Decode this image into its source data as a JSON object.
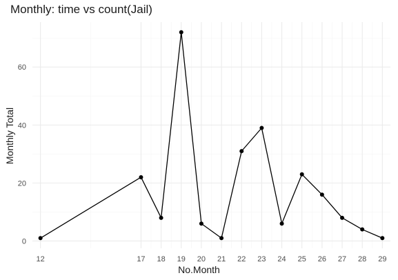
{
  "chart_data": {
    "type": "line",
    "title": "Monthly: time vs count(Jail)",
    "xlabel": "No.Month",
    "ylabel": "Monthly Total",
    "x": [
      12,
      17,
      18,
      19,
      20,
      21,
      22,
      23,
      24,
      25,
      26,
      27,
      28,
      29
    ],
    "series": [
      {
        "values": [
          1,
          22,
          8,
          72,
          6,
          1,
          31,
          39,
          6,
          23,
          16,
          8,
          4,
          1
        ]
      }
    ],
    "xlim": [
      11.6,
      29.4
    ],
    "ylim": [
      -2.5,
      75.5
    ],
    "y_ticks": [
      0,
      20,
      40,
      60
    ],
    "x_ticks": [
      12,
      17,
      18,
      19,
      20,
      21,
      22,
      23,
      24,
      25,
      26,
      27,
      28,
      29
    ],
    "x_minor_ticks": [
      14.5,
      17.5,
      18.5,
      19.5,
      20.5,
      21.5,
      22.5,
      23.5,
      24.5,
      25.5,
      26.5,
      27.5,
      28.5
    ],
    "y_minor_ticks": [
      10,
      30,
      50,
      70
    ],
    "grid": true,
    "legend": "none",
    "colors": {
      "line": "#000000",
      "point": "#000000",
      "grid_major": "#ebebeb",
      "grid_minor": "#f5f5f5",
      "text": "#4d4d4d"
    }
  }
}
